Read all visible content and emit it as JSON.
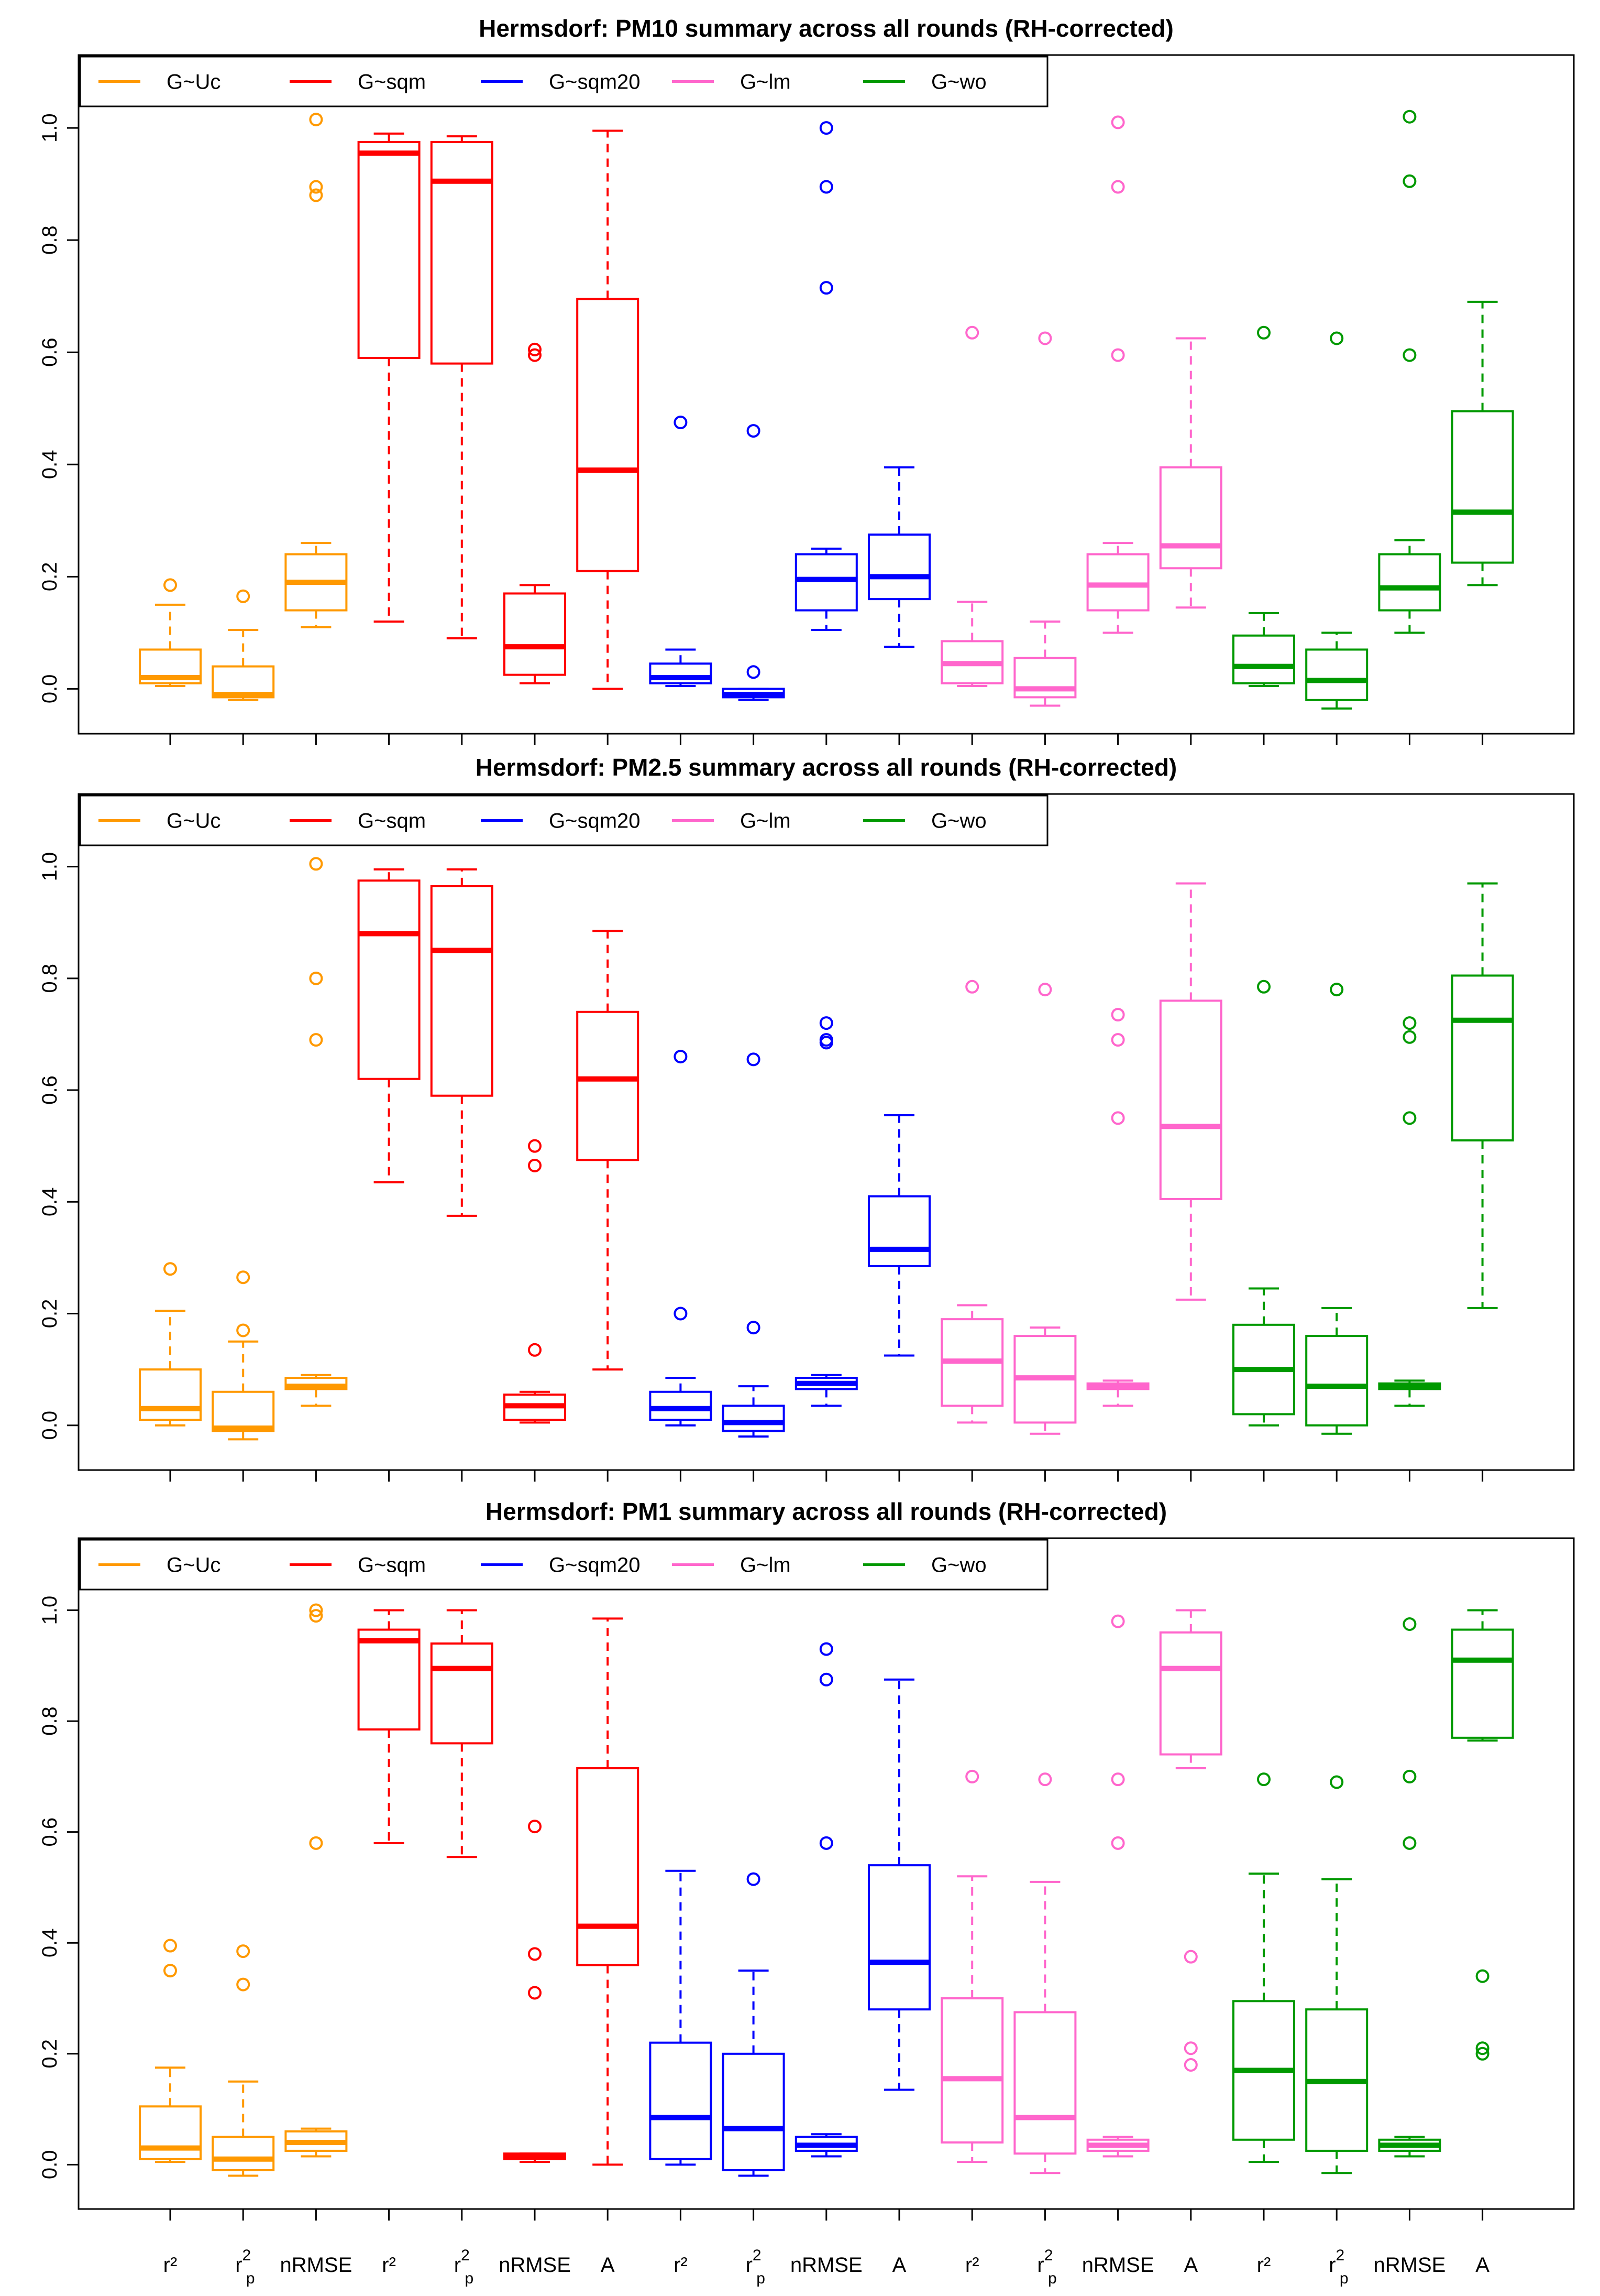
{
  "figure": {
    "x_labels": [
      {
        "main": "r²",
        "sub": ""
      },
      {
        "main": "r",
        "sup": "2",
        "sub": "p"
      },
      {
        "main": "nRMSE",
        "sub": ""
      },
      {
        "main": "r²",
        "sub": ""
      },
      {
        "main": "r",
        "sup": "2",
        "sub": "p"
      },
      {
        "main": "nRMSE",
        "sub": ""
      },
      {
        "main": "A",
        "sub": ""
      },
      {
        "main": "r²",
        "sub": ""
      },
      {
        "main": "r",
        "sup": "2",
        "sub": "p"
      },
      {
        "main": "nRMSE",
        "sub": ""
      },
      {
        "main": "A",
        "sub": ""
      },
      {
        "main": "r²",
        "sub": ""
      },
      {
        "main": "r",
        "sup": "2",
        "sub": "p"
      },
      {
        "main": "nRMSE",
        "sub": ""
      },
      {
        "main": "A",
        "sub": ""
      },
      {
        "main": "r²",
        "sub": ""
      },
      {
        "main": "r",
        "sup": "2",
        "sub": "p"
      },
      {
        "main": "nRMSE",
        "sub": ""
      },
      {
        "main": "A",
        "sub": ""
      }
    ]
  },
  "chart_data": [
    {
      "type": "boxplot",
      "title": "Hermsdorf: PM10 summary across all rounds (RH-corrected)",
      "ylim": [
        -0.08,
        1.13
      ],
      "yticks": [
        "0.0",
        "0.2",
        "0.4",
        "0.6",
        "0.8",
        "1.0"
      ],
      "legend": [
        {
          "label": "G~Uc",
          "color": "#FF9900"
        },
        {
          "label": "G~sqm",
          "color": "#FF0000"
        },
        {
          "label": "G~sqm20",
          "color": "#0000FF"
        },
        {
          "label": "G~lm",
          "color": "#FF66CC"
        },
        {
          "label": "G~wo",
          "color": "#009900"
        }
      ],
      "boxes": [
        {
          "pos": 1,
          "group": 0,
          "stats": [
            0.005,
            0.01,
            0.02,
            0.07,
            0.15
          ],
          "outliers": [
            0.185
          ]
        },
        {
          "pos": 2,
          "group": 0,
          "stats": [
            -0.02,
            -0.015,
            -0.01,
            0.04,
            0.105
          ],
          "outliers": [
            0.165
          ]
        },
        {
          "pos": 3,
          "group": 0,
          "stats": [
            0.11,
            0.14,
            0.19,
            0.24,
            0.26
          ],
          "outliers": [
            0.88,
            0.895,
            1.015
          ]
        },
        {
          "pos": 4,
          "group": 1,
          "stats": [
            0.12,
            0.59,
            0.955,
            0.975,
            0.99
          ],
          "outliers": []
        },
        {
          "pos": 5,
          "group": 1,
          "stats": [
            0.09,
            0.58,
            0.905,
            0.975,
            0.985
          ],
          "outliers": []
        },
        {
          "pos": 6,
          "group": 1,
          "stats": [
            0.01,
            0.025,
            0.075,
            0.17,
            0.185
          ],
          "outliers": [
            0.595,
            0.605
          ]
        },
        {
          "pos": 7,
          "group": 1,
          "stats": [
            0.0,
            0.21,
            0.39,
            0.695,
            0.995
          ],
          "outliers": []
        },
        {
          "pos": 8,
          "group": 2,
          "stats": [
            0.005,
            0.01,
            0.02,
            0.045,
            0.07
          ],
          "outliers": [
            0.475
          ]
        },
        {
          "pos": 9,
          "group": 2,
          "stats": [
            -0.02,
            -0.015,
            -0.01,
            0.0,
            0.0
          ],
          "outliers": [
            0.03,
            0.46
          ]
        },
        {
          "pos": 10,
          "group": 2,
          "stats": [
            0.105,
            0.14,
            0.195,
            0.24,
            0.25
          ],
          "outliers": [
            0.715,
            0.895,
            1.0
          ]
        },
        {
          "pos": 11,
          "group": 2,
          "stats": [
            0.075,
            0.16,
            0.2,
            0.275,
            0.395
          ],
          "outliers": []
        },
        {
          "pos": 12,
          "group": 3,
          "stats": [
            0.005,
            0.01,
            0.045,
            0.085,
            0.155
          ],
          "outliers": [
            0.635
          ]
        },
        {
          "pos": 13,
          "group": 3,
          "stats": [
            -0.03,
            -0.015,
            0.0,
            0.055,
            0.12
          ],
          "outliers": [
            0.625
          ]
        },
        {
          "pos": 14,
          "group": 3,
          "stats": [
            0.1,
            0.14,
            0.185,
            0.24,
            0.26
          ],
          "outliers": [
            0.595,
            0.895,
            1.01
          ]
        },
        {
          "pos": 15,
          "group": 3,
          "stats": [
            0.145,
            0.215,
            0.255,
            0.395,
            0.625
          ],
          "outliers": []
        },
        {
          "pos": 16,
          "group": 4,
          "stats": [
            0.005,
            0.01,
            0.04,
            0.095,
            0.135
          ],
          "outliers": [
            0.635
          ]
        },
        {
          "pos": 17,
          "group": 4,
          "stats": [
            -0.035,
            -0.02,
            0.015,
            0.07,
            0.1
          ],
          "outliers": [
            0.625
          ]
        },
        {
          "pos": 18,
          "group": 4,
          "stats": [
            0.1,
            0.14,
            0.18,
            0.24,
            0.265
          ],
          "outliers": [
            0.595,
            0.905,
            1.02
          ]
        },
        {
          "pos": 19,
          "group": 4,
          "stats": [
            0.185,
            0.225,
            0.315,
            0.495,
            0.69
          ],
          "outliers": []
        }
      ]
    },
    {
      "type": "boxplot",
      "title": "Hermsdorf: PM2.5 summary across all rounds (RH-corrected)",
      "ylim": [
        -0.08,
        1.13
      ],
      "yticks": [
        "0.0",
        "0.2",
        "0.4",
        "0.6",
        "0.8",
        "1.0"
      ],
      "legend": [
        {
          "label": "G~Uc",
          "color": "#FF9900"
        },
        {
          "label": "G~sqm",
          "color": "#FF0000"
        },
        {
          "label": "G~sqm20",
          "color": "#0000FF"
        },
        {
          "label": "G~lm",
          "color": "#FF66CC"
        },
        {
          "label": "G~wo",
          "color": "#009900"
        }
      ],
      "boxes": [
        {
          "pos": 1,
          "group": 0,
          "stats": [
            0.0,
            0.01,
            0.03,
            0.1,
            0.205
          ],
          "outliers": [
            0.28
          ]
        },
        {
          "pos": 2,
          "group": 0,
          "stats": [
            -0.025,
            -0.01,
            -0.005,
            0.06,
            0.15
          ],
          "outliers": [
            0.17,
            0.265
          ]
        },
        {
          "pos": 3,
          "group": 0,
          "stats": [
            0.035,
            0.065,
            0.07,
            0.085,
            0.09
          ],
          "outliers": [
            0.69,
            0.8,
            1.005
          ]
        },
        {
          "pos": 4,
          "group": 1,
          "stats": [
            0.435,
            0.62,
            0.88,
            0.975,
            0.995
          ],
          "outliers": []
        },
        {
          "pos": 5,
          "group": 1,
          "stats": [
            0.375,
            0.59,
            0.85,
            0.965,
            0.995
          ],
          "outliers": []
        },
        {
          "pos": 6,
          "group": 1,
          "stats": [
            0.005,
            0.01,
            0.035,
            0.055,
            0.06
          ],
          "outliers": [
            0.135,
            0.465,
            0.5
          ]
        },
        {
          "pos": 7,
          "group": 1,
          "stats": [
            0.1,
            0.475,
            0.62,
            0.74,
            0.885
          ],
          "outliers": []
        },
        {
          "pos": 8,
          "group": 2,
          "stats": [
            0.0,
            0.01,
            0.03,
            0.06,
            0.085
          ],
          "outliers": [
            0.2,
            0.66
          ]
        },
        {
          "pos": 9,
          "group": 2,
          "stats": [
            -0.02,
            -0.01,
            0.005,
            0.035,
            0.07
          ],
          "outliers": [
            0.175,
            0.655
          ]
        },
        {
          "pos": 10,
          "group": 2,
          "stats": [
            0.035,
            0.065,
            0.075,
            0.085,
            0.09
          ],
          "outliers": [
            0.685,
            0.69,
            0.72
          ]
        },
        {
          "pos": 11,
          "group": 2,
          "stats": [
            0.125,
            0.285,
            0.315,
            0.41,
            0.555
          ],
          "outliers": []
        },
        {
          "pos": 12,
          "group": 3,
          "stats": [
            0.005,
            0.035,
            0.115,
            0.19,
            0.215
          ],
          "outliers": [
            0.785
          ]
        },
        {
          "pos": 13,
          "group": 3,
          "stats": [
            -0.015,
            0.005,
            0.085,
            0.16,
            0.175
          ],
          "outliers": [
            0.78
          ]
        },
        {
          "pos": 14,
          "group": 3,
          "stats": [
            0.035,
            0.065,
            0.07,
            0.075,
            0.08
          ],
          "outliers": [
            0.55,
            0.69,
            0.735
          ]
        },
        {
          "pos": 15,
          "group": 3,
          "stats": [
            0.225,
            0.405,
            0.535,
            0.76,
            0.97
          ],
          "outliers": []
        },
        {
          "pos": 16,
          "group": 4,
          "stats": [
            0.0,
            0.02,
            0.1,
            0.18,
            0.245
          ],
          "outliers": [
            0.785
          ]
        },
        {
          "pos": 17,
          "group": 4,
          "stats": [
            -0.015,
            0.0,
            0.07,
            0.16,
            0.21
          ],
          "outliers": [
            0.78
          ]
        },
        {
          "pos": 18,
          "group": 4,
          "stats": [
            0.035,
            0.065,
            0.07,
            0.075,
            0.08
          ],
          "outliers": [
            0.55,
            0.695,
            0.72
          ]
        },
        {
          "pos": 19,
          "group": 4,
          "stats": [
            0.21,
            0.51,
            0.725,
            0.805,
            0.97
          ],
          "outliers": []
        }
      ]
    },
    {
      "type": "boxplot",
      "title": "Hermsdorf: PM1 summary across all rounds (RH-corrected)",
      "ylim": [
        -0.08,
        1.13
      ],
      "yticks": [
        "0.0",
        "0.2",
        "0.4",
        "0.6",
        "0.8",
        "1.0"
      ],
      "legend": [
        {
          "label": "G~Uc",
          "color": "#FF9900"
        },
        {
          "label": "G~sqm",
          "color": "#FF0000"
        },
        {
          "label": "G~sqm20",
          "color": "#0000FF"
        },
        {
          "label": "G~lm",
          "color": "#FF66CC"
        },
        {
          "label": "G~wo",
          "color": "#009900"
        }
      ],
      "boxes": [
        {
          "pos": 1,
          "group": 0,
          "stats": [
            0.005,
            0.01,
            0.03,
            0.105,
            0.175
          ],
          "outliers": [
            0.35,
            0.395
          ]
        },
        {
          "pos": 2,
          "group": 0,
          "stats": [
            -0.02,
            -0.01,
            0.01,
            0.05,
            0.15
          ],
          "outliers": [
            0.325,
            0.385
          ]
        },
        {
          "pos": 3,
          "group": 0,
          "stats": [
            0.015,
            0.025,
            0.04,
            0.06,
            0.065
          ],
          "outliers": [
            0.58,
            0.99,
            1.0
          ]
        },
        {
          "pos": 4,
          "group": 1,
          "stats": [
            0.58,
            0.785,
            0.945,
            0.965,
            1.0
          ],
          "outliers": []
        },
        {
          "pos": 5,
          "group": 1,
          "stats": [
            0.555,
            0.76,
            0.895,
            0.94,
            1.0
          ],
          "outliers": []
        },
        {
          "pos": 6,
          "group": 1,
          "stats": [
            0.005,
            0.01,
            0.015,
            0.02,
            0.02
          ],
          "outliers": [
            0.31,
            0.38,
            0.61
          ]
        },
        {
          "pos": 7,
          "group": 1,
          "stats": [
            0.0,
            0.36,
            0.43,
            0.715,
            0.985
          ],
          "outliers": []
        },
        {
          "pos": 8,
          "group": 2,
          "stats": [
            0.0,
            0.01,
            0.085,
            0.22,
            0.53
          ],
          "outliers": []
        },
        {
          "pos": 9,
          "group": 2,
          "stats": [
            -0.02,
            -0.01,
            0.065,
            0.2,
            0.35
          ],
          "outliers": [
            0.515
          ]
        },
        {
          "pos": 10,
          "group": 2,
          "stats": [
            0.015,
            0.025,
            0.035,
            0.05,
            0.055
          ],
          "outliers": [
            0.58,
            0.875,
            0.93
          ]
        },
        {
          "pos": 11,
          "group": 2,
          "stats": [
            0.135,
            0.28,
            0.365,
            0.54,
            0.875
          ],
          "outliers": []
        },
        {
          "pos": 12,
          "group": 3,
          "stats": [
            0.005,
            0.04,
            0.155,
            0.3,
            0.52
          ],
          "outliers": [
            0.7
          ]
        },
        {
          "pos": 13,
          "group": 3,
          "stats": [
            -0.015,
            0.02,
            0.085,
            0.275,
            0.51
          ],
          "outliers": [
            0.695
          ]
        },
        {
          "pos": 14,
          "group": 3,
          "stats": [
            0.015,
            0.025,
            0.035,
            0.045,
            0.05
          ],
          "outliers": [
            0.58,
            0.695,
            0.98
          ]
        },
        {
          "pos": 15,
          "group": 3,
          "stats": [
            0.715,
            0.74,
            0.895,
            0.96,
            1.0
          ],
          "outliers": [
            0.18,
            0.21,
            0.375
          ]
        },
        {
          "pos": 16,
          "group": 4,
          "stats": [
            0.005,
            0.045,
            0.17,
            0.295,
            0.525
          ],
          "outliers": [
            0.695
          ]
        },
        {
          "pos": 17,
          "group": 4,
          "stats": [
            -0.015,
            0.025,
            0.15,
            0.28,
            0.515
          ],
          "outliers": [
            0.69
          ]
        },
        {
          "pos": 18,
          "group": 4,
          "stats": [
            0.015,
            0.025,
            0.035,
            0.045,
            0.05
          ],
          "outliers": [
            0.58,
            0.7,
            0.975
          ]
        },
        {
          "pos": 19,
          "group": 4,
          "stats": [
            0.765,
            0.77,
            0.91,
            0.965,
            1.0
          ],
          "outliers": [
            0.2,
            0.21,
            0.34
          ]
        }
      ]
    }
  ]
}
